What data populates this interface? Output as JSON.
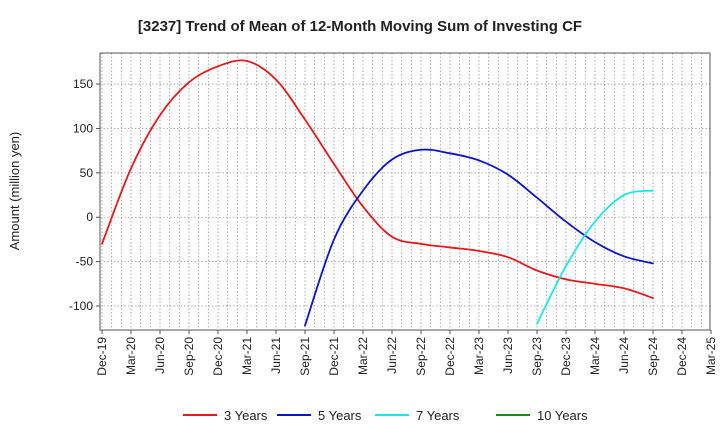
{
  "chart_data": {
    "type": "line",
    "title": "[3237]  Trend of Mean of 12-Month Moving Sum of Investing CF",
    "ylabel": "Amount (million yen)",
    "xlabel": "",
    "ylim": [
      -127,
      185
    ],
    "yticks": [
      150,
      100,
      50,
      0,
      -50,
      -100
    ],
    "ytick_labels": [
      "150",
      "100",
      "50",
      "0",
      "-50",
      "-100"
    ],
    "x_categories": [
      "Dec-19",
      "Mar-20",
      "Jun-20",
      "Sep-20",
      "Dec-20",
      "Mar-21",
      "Jun-21",
      "Sep-21",
      "Dec-21",
      "Mar-22",
      "Jun-22",
      "Sep-22",
      "Dec-22",
      "Mar-23",
      "Jun-23",
      "Sep-23",
      "Dec-23",
      "Mar-24",
      "Jun-24",
      "Sep-24",
      "Dec-24",
      "Mar-25"
    ],
    "grid": true,
    "legend_position": "bottom",
    "series": [
      {
        "name": "3 Years",
        "color": "#e31a1c",
        "points": [
          [
            "Dec-19",
            -30
          ],
          [
            "Mar-20",
            55
          ],
          [
            "Jun-20",
            115
          ],
          [
            "Sep-20",
            152
          ],
          [
            "Dec-20",
            170
          ],
          [
            "Mar-21",
            176
          ],
          [
            "Jun-21",
            155
          ],
          [
            "Sep-21",
            110
          ],
          [
            "Dec-21",
            60
          ],
          [
            "Mar-22",
            12
          ],
          [
            "Jun-22",
            -22
          ],
          [
            "Sep-22",
            -30
          ],
          [
            "Dec-22",
            -34
          ],
          [
            "Mar-23",
            -38
          ],
          [
            "Jun-23",
            -45
          ],
          [
            "Sep-23",
            -60
          ],
          [
            "Dec-23",
            -70
          ],
          [
            "Mar-24",
            -75
          ],
          [
            "Jun-24",
            -80
          ],
          [
            "Sep-24",
            -91
          ]
        ]
      },
      {
        "name": "5 Years",
        "color": "#0a14c8",
        "points": [
          [
            "Sep-21",
            -122
          ],
          [
            "Dec-21",
            -25
          ],
          [
            "Mar-22",
            30
          ],
          [
            "Jun-22",
            65
          ],
          [
            "Sep-22",
            76
          ],
          [
            "Dec-22",
            72
          ],
          [
            "Mar-23",
            64
          ],
          [
            "Jun-23",
            48
          ],
          [
            "Sep-23",
            22
          ],
          [
            "Dec-23",
            -5
          ],
          [
            "Mar-24",
            -28
          ],
          [
            "Jun-24",
            -44
          ],
          [
            "Sep-24",
            -52
          ]
        ]
      },
      {
        "name": "7 Years",
        "color": "#1ee6e6",
        "points": [
          [
            "Sep-23",
            -120
          ],
          [
            "Dec-23",
            -55
          ],
          [
            "Mar-24",
            -5
          ],
          [
            "Jun-24",
            25
          ],
          [
            "Sep-24",
            30
          ]
        ]
      },
      {
        "name": "10 Years",
        "color": "#1a8a1a",
        "points": []
      }
    ]
  }
}
